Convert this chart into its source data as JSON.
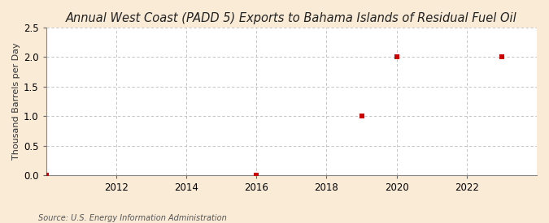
{
  "title": "Annual West Coast (PADD 5) Exports to Bahama Islands of Residual Fuel Oil",
  "ylabel": "Thousand Barrels per Day",
  "source": "Source: U.S. Energy Information Administration",
  "outer_background": "#faebd7",
  "plot_background": "#ffffff",
  "data_x": [
    2010,
    2016,
    2019,
    2020,
    2023
  ],
  "data_y": [
    0.0,
    0.0,
    1.0,
    2.0,
    2.0
  ],
  "marker_color": "#cc0000",
  "marker_size": 4,
  "xlim": [
    2010.0,
    2024.0
  ],
  "ylim": [
    0.0,
    2.5
  ],
  "xticks": [
    2012,
    2014,
    2016,
    2018,
    2020,
    2022
  ],
  "yticks": [
    0.0,
    0.5,
    1.0,
    1.5,
    2.0,
    2.5
  ],
  "grid_color": "#bbbbbb",
  "title_fontsize": 10.5,
  "label_fontsize": 8,
  "tick_fontsize": 8.5,
  "source_fontsize": 7
}
